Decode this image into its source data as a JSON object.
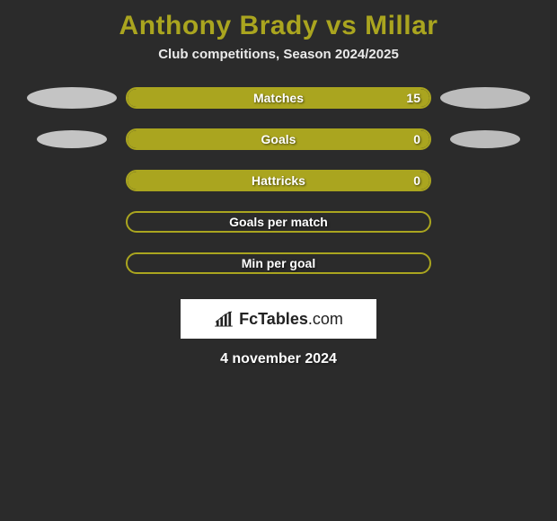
{
  "colors": {
    "background": "#2b2b2b",
    "accent": "#aaa51f",
    "ellipse_left": "#c4c4c4",
    "ellipse_right": "#bcbcbc",
    "text": "#ffffff"
  },
  "header": {
    "title": "Anthony Brady vs Millar",
    "subtitle": "Club competitions, Season 2024/2025"
  },
  "stats": [
    {
      "label": "Matches",
      "right_value": "15",
      "fill_pct": 100,
      "show_left_ellipse": true,
      "show_right_ellipse": true
    },
    {
      "label": "Goals",
      "right_value": "0",
      "fill_pct": 100,
      "show_left_ellipse": true,
      "show_right_ellipse": true
    },
    {
      "label": "Hattricks",
      "right_value": "0",
      "fill_pct": 100,
      "show_left_ellipse": false,
      "show_right_ellipse": false
    },
    {
      "label": "Goals per match",
      "right_value": "",
      "fill_pct": 0,
      "show_left_ellipse": false,
      "show_right_ellipse": false
    },
    {
      "label": "Min per goal",
      "right_value": "",
      "fill_pct": 0,
      "show_left_ellipse": false,
      "show_right_ellipse": false
    }
  ],
  "branding": {
    "logo_text_bold": "FcTables",
    "logo_text_light": ".com"
  },
  "footer": {
    "date": "4 november 2024"
  }
}
